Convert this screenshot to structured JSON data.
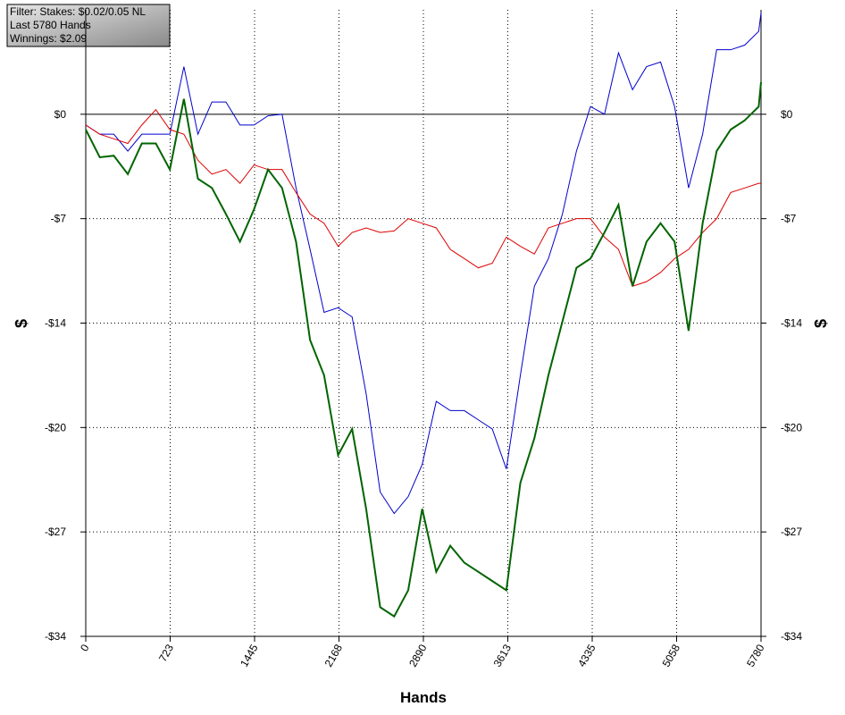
{
  "info": {
    "lines": [
      "Filter: Stakes: $0.02/0.05 NL",
      "Last  5780 Hands",
      "Winnings: $2.09"
    ]
  },
  "chart_data": {
    "type": "line",
    "x_label": "Hands",
    "y_label": "$",
    "y2_label": "$",
    "xlim": [
      0,
      5780
    ],
    "xticks": [
      0,
      {
        "value": 722.5,
        "label": "723"
      },
      {
        "value": 1445,
        "label": "1445"
      },
      {
        "value": 2167.5,
        "label": "2168"
      },
      {
        "value": 2890,
        "label": "2890"
      },
      {
        "value": 3612.5,
        "label": "3613"
      },
      {
        "value": 4335,
        "label": "4335"
      },
      {
        "value": 5057.5,
        "label": "5058"
      },
      {
        "value": 5780,
        "label": "5780"
      }
    ],
    "ylim": [
      -34,
      6.8
    ],
    "yticks": [
      {
        "value": 0,
        "label": "$0"
      },
      {
        "value": -6.8,
        "label": "-$7"
      },
      {
        "value": -13.6,
        "label": "-$14"
      },
      {
        "value": -20.4,
        "label": "-$20"
      },
      {
        "value": -27.2,
        "label": "-$27"
      },
      {
        "value": -34,
        "label": "-$34"
      }
    ],
    "grid": true,
    "x": [
      0,
      120,
      240,
      360,
      480,
      600,
      720,
      840,
      960,
      1080,
      1200,
      1320,
      1440,
      1560,
      1680,
      1800,
      1920,
      2040,
      2160,
      2280,
      2400,
      2520,
      2640,
      2760,
      2880,
      3000,
      3120,
      3240,
      3360,
      3480,
      3600,
      3720,
      3840,
      3960,
      4080,
      4200,
      4320,
      4440,
      4560,
      4680,
      4800,
      4920,
      5040,
      5160,
      5280,
      5400,
      5520,
      5640,
      5760,
      5780
    ],
    "series": [
      {
        "color": "#0000cc",
        "width": 1,
        "values": [
          -0.7,
          -1.3,
          -1.3,
          -2.4,
          -1.3,
          -1.3,
          -1.3,
          3.1,
          -1.3,
          0.8,
          0.8,
          -0.7,
          -0.7,
          -0.1,
          0,
          -4.8,
          -8.8,
          -12.9,
          -12.6,
          -13.2,
          -18.2,
          -24.6,
          -26.0,
          -24.9,
          -22.8,
          -18.7,
          -19.3,
          -19.3,
          -19.9,
          -20.5,
          -23.1,
          -17.0,
          -11.2,
          -9.4,
          -6.5,
          -2.4,
          0.5,
          0,
          4.0,
          1.6,
          3.1,
          3.4,
          0.5,
          -4.8,
          -1.3,
          4.2,
          4.2,
          4.5,
          5.4,
          6.6
        ]
      },
      {
        "color": "#dd0000",
        "width": 1,
        "values": [
          -0.7,
          -1.3,
          -1.6,
          -1.9,
          -0.7,
          0.3,
          -1.0,
          -1.3,
          -3.0,
          -3.9,
          -3.6,
          -4.5,
          -3.3,
          -3.6,
          -3.6,
          -5.1,
          -6.5,
          -7.1,
          -8.6,
          -7.7,
          -7.4,
          -7.7,
          -7.6,
          -6.8,
          -7.1,
          -7.4,
          -8.8,
          -9.4,
          -10.0,
          -9.7,
          -8.0,
          -8.6,
          -9.1,
          -7.4,
          -7.1,
          -6.8,
          -6.8,
          -8.0,
          -8.8,
          -11.2,
          -10.9,
          -10.3,
          -9.4,
          -8.8,
          -7.7,
          -6.8,
          -5.1,
          -4.8,
          -4.5,
          -4.5
        ]
      },
      {
        "color": "#006400",
        "width": 2,
        "values": [
          -1.0,
          -2.8,
          -2.7,
          -3.9,
          -1.9,
          -1.9,
          -3.6,
          1.0,
          -4.2,
          -4.8,
          -6.5,
          -8.3,
          -6.2,
          -3.6,
          -4.8,
          -8.3,
          -14.7,
          -17.0,
          -22.2,
          -20.5,
          -25.7,
          -32.1,
          -32.7,
          -31.0,
          -25.7,
          -29.8,
          -28.1,
          -29.2,
          -29.8,
          -30.4,
          -31.0,
          -24.0,
          -21.1,
          -17.0,
          -13.5,
          -10.0,
          -9.4,
          -7.7,
          -5.9,
          -11.2,
          -8.3,
          -7.1,
          -8.3,
          -14.1,
          -7.1,
          -2.4,
          -1.0,
          -0.4,
          0.5,
          2.09
        ]
      }
    ]
  }
}
